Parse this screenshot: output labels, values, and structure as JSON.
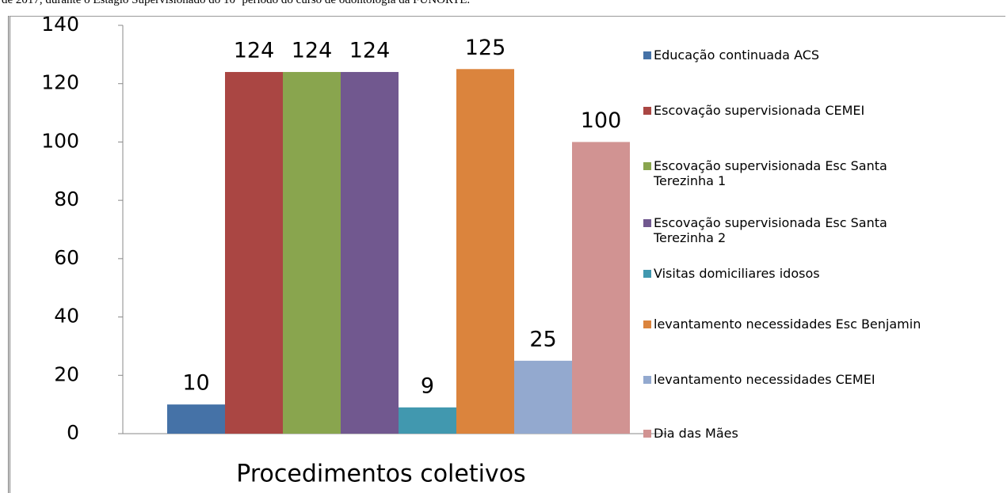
{
  "caption": "de 2017, durante o Estágio Supervisionado do 10º período do curso de odontologia da FUNORTE.",
  "chart_data": {
    "type": "bar",
    "categories": [
      "Procedimentos coletivos"
    ],
    "ylim": [
      0,
      140
    ],
    "yticks": [
      0,
      20,
      40,
      60,
      80,
      100,
      120,
      140
    ],
    "grid": false,
    "legend": "right",
    "series": [
      {
        "name": "Educação continuada ACS",
        "color": "#4572a7",
        "values": [
          10
        ]
      },
      {
        "name": "Escovação supervisionada CEMEI",
        "color": "#aa4643",
        "values": [
          124
        ]
      },
      {
        "name": "Escovação supervisionada Esc Santa Terezinha 1",
        "color": "#89a54e",
        "values": [
          124
        ]
      },
      {
        "name": "Escovação supervisionada Esc Santa Terezinha 2",
        "color": "#71588f",
        "values": [
          124
        ]
      },
      {
        "name": "Visitas domiciliares idosos",
        "color": "#4198af",
        "values": [
          9
        ]
      },
      {
        "name": "levantamento necessidades Esc Benjamin",
        "color": "#db843d",
        "values": [
          125
        ]
      },
      {
        "name": "levantamento necessidades CEMEI",
        "color": "#93a9cf",
        "values": [
          25
        ]
      },
      {
        "name": "Dia das Mães",
        "color": "#d19392",
        "values": [
          100
        ]
      }
    ]
  }
}
